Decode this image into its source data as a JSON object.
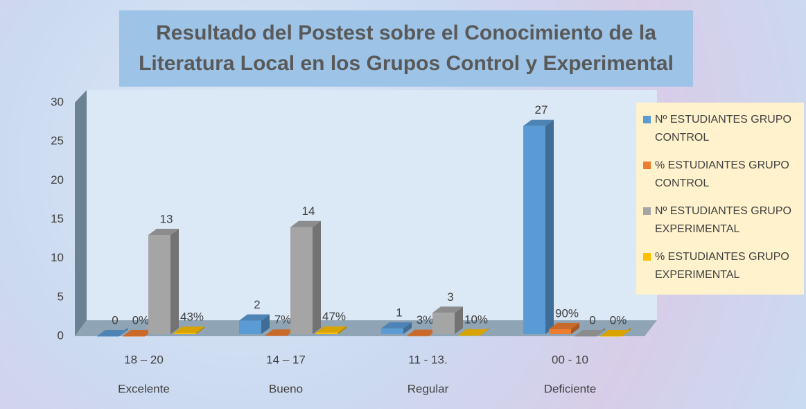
{
  "chart_data": {
    "type": "bar3d",
    "title": "Resultado del Postest sobre el Conocimiento de la Literatura Local en los Grupos Control y Experimental",
    "categories": [
      "18 – 20",
      "14 – 17",
      "11 - 13.",
      "00 - 10"
    ],
    "category_groups": [
      "Excelente",
      "Bueno",
      "Regular",
      "Deficiente"
    ],
    "series": [
      {
        "name": "Nº ESTUDIANTES GRUPO CONTROL",
        "color": "#5b9bd5",
        "values": [
          0,
          2,
          1,
          27
        ]
      },
      {
        "name": "% ESTUDIANTES GRUPO CONTROL",
        "color": "#ed7d31",
        "values": [
          0,
          0.07,
          0.03,
          0.9
        ],
        "value_labels": [
          "0%",
          "7%",
          "3%",
          "90%"
        ]
      },
      {
        "name": "Nº ESTUDIANTES GRUPO EXPERIMENTAL",
        "color": "#a5a5a5",
        "values": [
          13,
          14,
          3,
          0
        ]
      },
      {
        "name": "% ESTUDIANTES GRUPO EXPERIMENTAL",
        "color": "#ffc000",
        "values": [
          0.43,
          0.47,
          0.1,
          0
        ],
        "value_labels": [
          "43%",
          "47%",
          "10%",
          "0%"
        ]
      }
    ],
    "ylim": [
      0,
      30
    ],
    "yticks": [
      0,
      5,
      10,
      15,
      20,
      25,
      30
    ],
    "grid": false,
    "legend": "right"
  }
}
